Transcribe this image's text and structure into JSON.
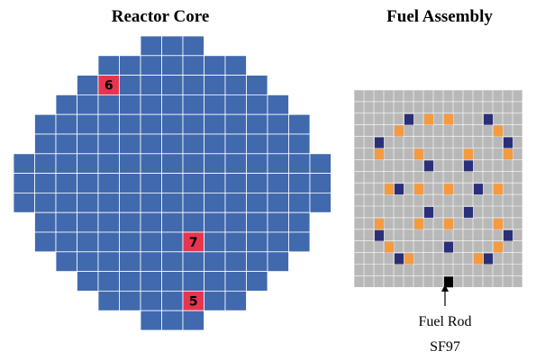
{
  "core": {
    "title": "Reactor Core",
    "markers": [
      {
        "label": "6"
      },
      {
        "label": "7"
      },
      {
        "label": "5"
      }
    ]
  },
  "assembly": {
    "title": "Fuel Assembly",
    "rod_label": "Fuel Rod",
    "rod_id": "SF97"
  }
}
